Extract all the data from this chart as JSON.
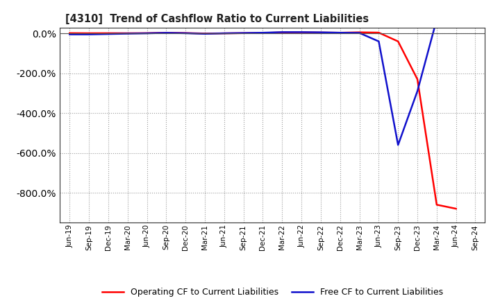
{
  "title": "[4310]  Trend of Cashflow Ratio to Current Liabilities",
  "x_labels": [
    "Jun-19",
    "Sep-19",
    "Dec-19",
    "Mar-20",
    "Jun-20",
    "Sep-20",
    "Dec-20",
    "Mar-21",
    "Jun-21",
    "Sep-21",
    "Dec-21",
    "Mar-22",
    "Jun-22",
    "Sep-22",
    "Dec-22",
    "Mar-23",
    "Jun-23",
    "Sep-23",
    "Dec-23",
    "Mar-24",
    "Jun-24",
    "Sep-24"
  ],
  "operating_cf": [
    1.5,
    1.0,
    1.2,
    1.0,
    1.5,
    3.5,
    2.0,
    -0.5,
    0.5,
    1.5,
    2.5,
    5.0,
    5.5,
    4.5,
    3.5,
    5.5,
    4.0,
    -40,
    -230,
    -860,
    -880,
    null
  ],
  "free_cf": [
    -5.0,
    -5.0,
    -3.0,
    -1.0,
    0.5,
    3.0,
    1.0,
    -2.0,
    0.5,
    2.0,
    3.5,
    6.5,
    6.5,
    5.5,
    3.5,
    2.5,
    -40,
    -560,
    -290,
    70,
    null,
    null
  ],
  "ylim": [
    -950,
    30
  ],
  "yticks": [
    0,
    -200,
    -400,
    -600,
    -800
  ],
  "operating_color": "#FF0000",
  "free_color": "#1010CC",
  "background_color": "#FFFFFF",
  "plot_bg_color": "#FFFFFF",
  "grid_color": "#999999",
  "line_width": 1.8,
  "legend_op": "Operating CF to Current Liabilities",
  "legend_free": "Free CF to Current Liabilities"
}
